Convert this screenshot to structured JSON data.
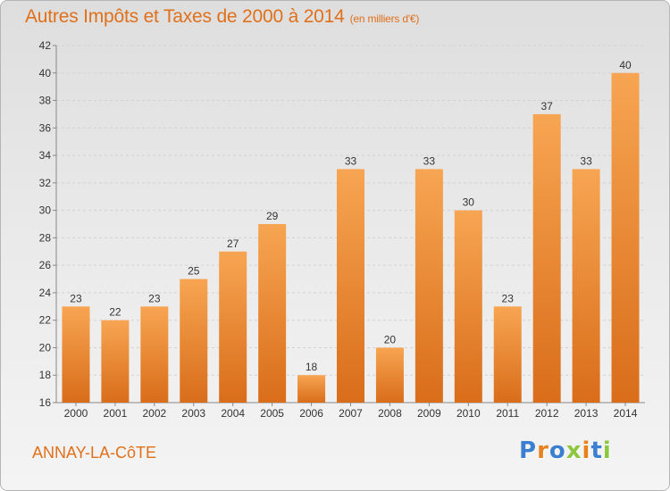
{
  "title": "Autres Impôts et Taxes de 2000 à 2014",
  "title_unit": "(en milliers d'€)",
  "commune": "ANNAY-LA-CôTE",
  "logo": {
    "text": "Proxiti",
    "letter_colors": [
      "#3a7fd0",
      "#e8821e",
      "#3a7fd0",
      "#8dc63f",
      "#e8821e",
      "#3a7fd0",
      "#8dc63f"
    ]
  },
  "colors": {
    "accent": "#e0701a",
    "bar_top": "#f7a552",
    "bar_bottom": "#d96d1a"
  },
  "chart_data": {
    "type": "bar",
    "categories": [
      "2000",
      "2001",
      "2002",
      "2003",
      "2004",
      "2005",
      "2006",
      "2007",
      "2008",
      "2009",
      "2010",
      "2011",
      "2012",
      "2013",
      "2014"
    ],
    "values": [
      23,
      22,
      23,
      25,
      27,
      29,
      18,
      33,
      20,
      33,
      30,
      23,
      37,
      33,
      40
    ],
    "ylim": [
      16,
      42
    ],
    "yticks": [
      16,
      18,
      20,
      22,
      24,
      26,
      28,
      30,
      32,
      34,
      36,
      38,
      40,
      42
    ],
    "grid": true,
    "data_labels": true
  }
}
